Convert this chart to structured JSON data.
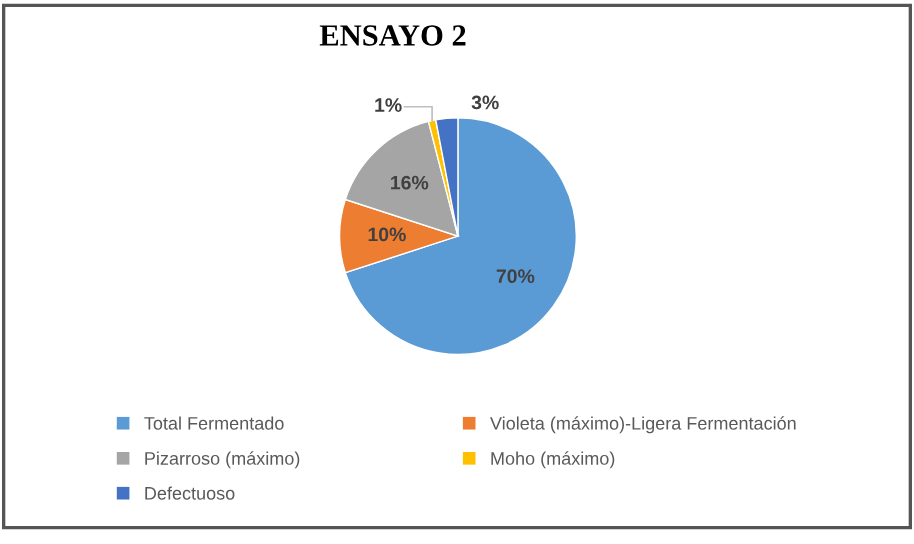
{
  "chart_data": {
    "type": "pie",
    "title": "ENSAYO 2",
    "categories": [
      "Total Fermentado",
      "Violeta (máximo)-Ligera Fermentación",
      "Pizarroso (máximo)",
      "Moho (máximo)",
      "Defectuoso"
    ],
    "values": [
      70,
      10,
      16,
      1,
      3
    ],
    "colors": [
      "#5b9bd5",
      "#ed7d31",
      "#a5a5a5",
      "#ffc000",
      "#4472c4"
    ],
    "value_labels": [
      "70%",
      "10%",
      "16%",
      "1%",
      "3%"
    ],
    "legend": "bottom"
  }
}
